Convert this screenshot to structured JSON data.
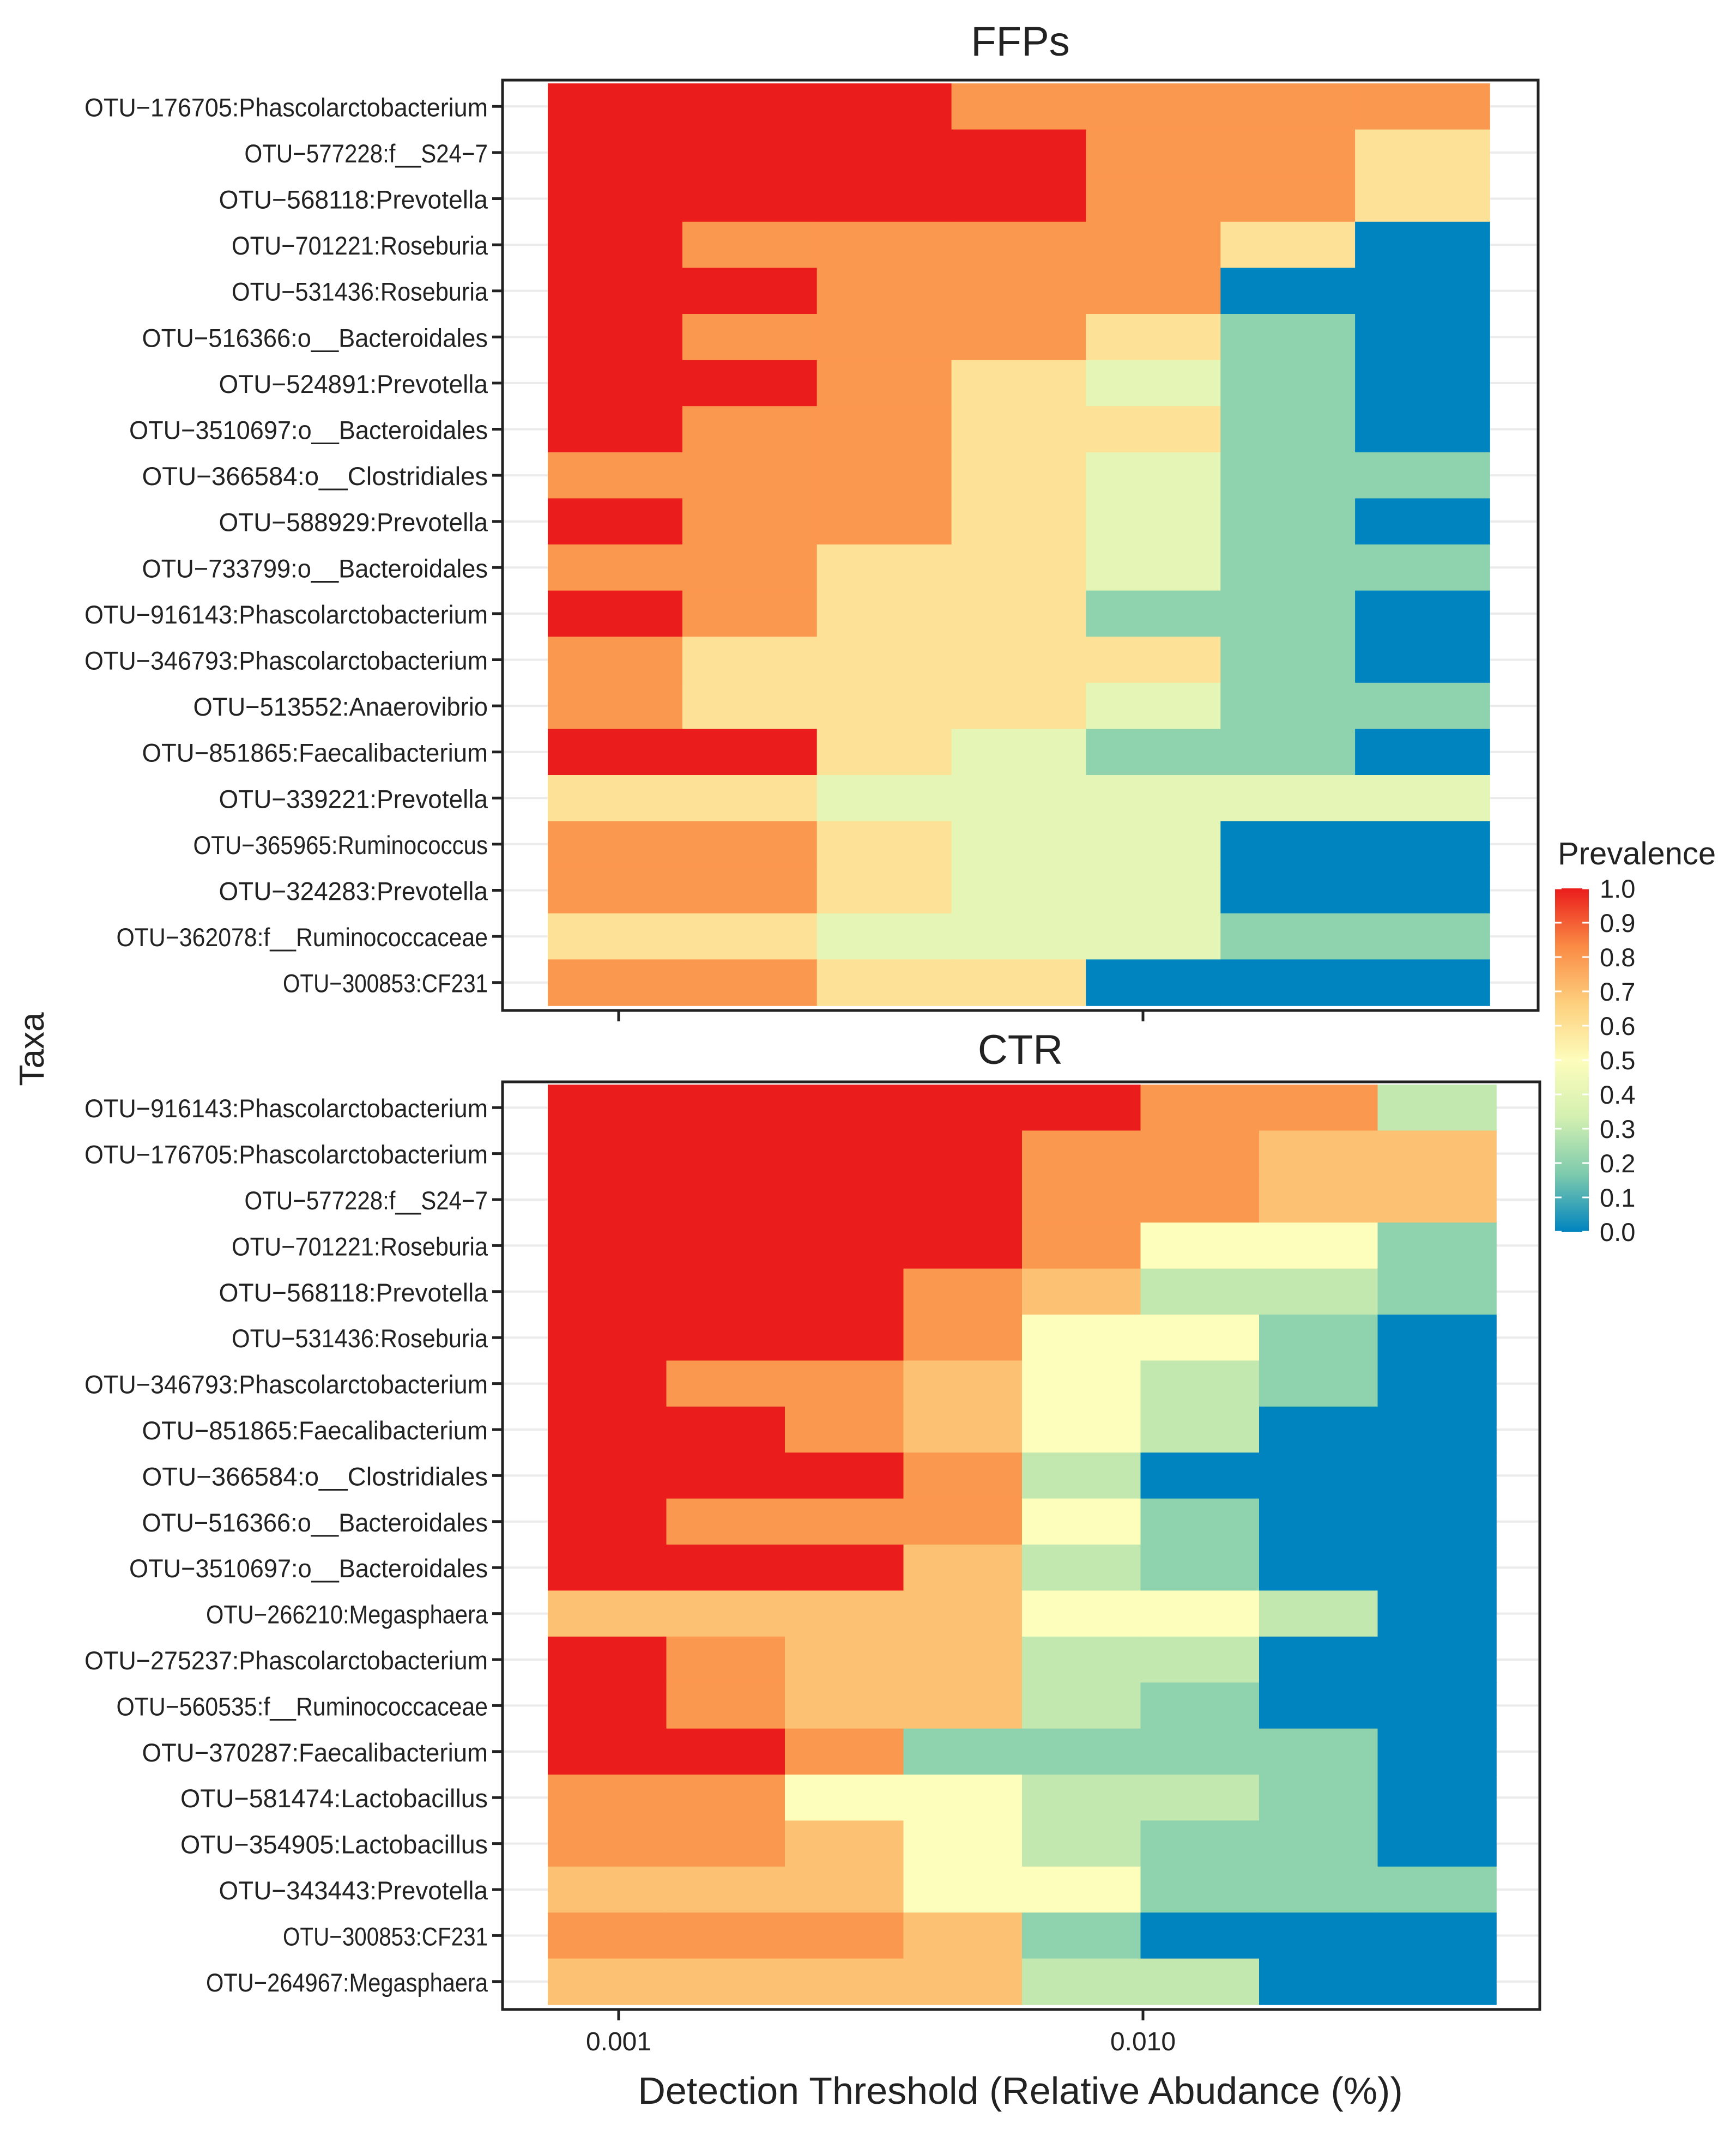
{
  "chart_data": [
    {
      "type": "heatmap",
      "title": "FFPs",
      "ylabel": "Taxa",
      "xlabel": "Detection Threshold (Relative Abudance (%))",
      "x_ticks": [
        "0.001",
        "0.010"
      ],
      "rows": [
        {
          "label": "OTU−176705:Phascolarctobacterium",
          "values": [
            1.0,
            1.0,
            1.0,
            0.8,
            0.8,
            0.8,
            0.8
          ]
        },
        {
          "label": "OTU−577228:f__S24−7",
          "values": [
            1.0,
            1.0,
            1.0,
            1.0,
            0.8,
            0.8,
            0.6
          ]
        },
        {
          "label": "OTU−568118:Prevotella",
          "values": [
            1.0,
            1.0,
            1.0,
            1.0,
            0.8,
            0.8,
            0.6
          ]
        },
        {
          "label": "OTU−701221:Roseburia",
          "values": [
            1.0,
            0.8,
            0.8,
            0.8,
            0.8,
            0.6,
            0.0
          ]
        },
        {
          "label": "OTU−531436:Roseburia",
          "values": [
            1.0,
            1.0,
            0.8,
            0.8,
            0.8,
            0.0,
            0.0
          ]
        },
        {
          "label": "OTU−516366:o__Bacteroidales",
          "values": [
            1.0,
            0.8,
            0.8,
            0.8,
            0.6,
            0.2,
            0.0
          ]
        },
        {
          "label": "OTU−524891:Prevotella",
          "values": [
            1.0,
            1.0,
            0.8,
            0.6,
            0.4,
            0.2,
            0.0
          ]
        },
        {
          "label": "OTU−3510697:o__Bacteroidales",
          "values": [
            1.0,
            0.8,
            0.8,
            0.6,
            0.6,
            0.2,
            0.0
          ]
        },
        {
          "label": "OTU−366584:o__Clostridiales",
          "values": [
            0.8,
            0.8,
            0.8,
            0.6,
            0.4,
            0.2,
            0.2
          ]
        },
        {
          "label": "OTU−588929:Prevotella",
          "values": [
            1.0,
            0.8,
            0.8,
            0.6,
            0.4,
            0.2,
            0.0
          ]
        },
        {
          "label": "OTU−733799:o__Bacteroidales",
          "values": [
            0.8,
            0.8,
            0.6,
            0.6,
            0.4,
            0.2,
            0.2
          ]
        },
        {
          "label": "OTU−916143:Phascolarctobacterium",
          "values": [
            1.0,
            0.8,
            0.6,
            0.6,
            0.2,
            0.2,
            0.0
          ]
        },
        {
          "label": "OTU−346793:Phascolarctobacterium",
          "values": [
            0.8,
            0.6,
            0.6,
            0.6,
            0.6,
            0.2,
            0.0
          ]
        },
        {
          "label": "OTU−513552:Anaerovibrio",
          "values": [
            0.8,
            0.6,
            0.6,
            0.6,
            0.4,
            0.2,
            0.2
          ]
        },
        {
          "label": "OTU−851865:Faecalibacterium",
          "values": [
            1.0,
            1.0,
            0.6,
            0.4,
            0.2,
            0.2,
            0.0
          ]
        },
        {
          "label": "OTU−339221:Prevotella",
          "values": [
            0.6,
            0.6,
            0.4,
            0.4,
            0.4,
            0.4,
            0.4
          ]
        },
        {
          "label": "OTU−365965:Ruminococcus",
          "values": [
            0.8,
            0.8,
            0.6,
            0.4,
            0.4,
            0.0,
            0.0
          ]
        },
        {
          "label": "OTU−324283:Prevotella",
          "values": [
            0.8,
            0.8,
            0.6,
            0.4,
            0.4,
            0.0,
            0.0
          ]
        },
        {
          "label": "OTU−362078:f__Ruminococcaceae",
          "values": [
            0.6,
            0.6,
            0.4,
            0.4,
            0.4,
            0.2,
            0.2
          ]
        },
        {
          "label": "OTU−300853:CF231",
          "values": [
            0.8,
            0.8,
            0.6,
            0.6,
            0.0,
            0.0,
            0.0
          ]
        }
      ]
    },
    {
      "type": "heatmap",
      "title": "CTR",
      "ylabel": "Taxa",
      "xlabel": "Detection Threshold (Relative Abudance (%))",
      "x_ticks": [
        "0.001",
        "0.010"
      ],
      "rows": [
        {
          "label": "OTU−916143:Phascolarctobacterium",
          "values": [
            1.0,
            1.0,
            1.0,
            1.0,
            1.0,
            0.8,
            0.8,
            0.3
          ]
        },
        {
          "label": "OTU−176705:Phascolarctobacterium",
          "values": [
            1.0,
            1.0,
            1.0,
            1.0,
            0.8,
            0.8,
            0.7,
            0.7
          ]
        },
        {
          "label": "OTU−577228:f__S24−7",
          "values": [
            1.0,
            1.0,
            1.0,
            1.0,
            0.8,
            0.8,
            0.7,
            0.7
          ]
        },
        {
          "label": "OTU−701221:Roseburia",
          "values": [
            1.0,
            1.0,
            1.0,
            1.0,
            0.8,
            0.5,
            0.5,
            0.2
          ]
        },
        {
          "label": "OTU−568118:Prevotella",
          "values": [
            1.0,
            1.0,
            1.0,
            0.8,
            0.7,
            0.3,
            0.3,
            0.2
          ]
        },
        {
          "label": "OTU−531436:Roseburia",
          "values": [
            1.0,
            1.0,
            1.0,
            0.8,
            0.5,
            0.5,
            0.2,
            0.0
          ]
        },
        {
          "label": "OTU−346793:Phascolarctobacterium",
          "values": [
            1.0,
            0.8,
            0.8,
            0.7,
            0.5,
            0.3,
            0.2,
            0.0
          ]
        },
        {
          "label": "OTU−851865:Faecalibacterium",
          "values": [
            1.0,
            1.0,
            0.8,
            0.7,
            0.5,
            0.3,
            0.0,
            0.0
          ]
        },
        {
          "label": "OTU−366584:o__Clostridiales",
          "values": [
            1.0,
            1.0,
            1.0,
            0.8,
            0.3,
            0.0,
            0.0,
            0.0
          ]
        },
        {
          "label": "OTU−516366:o__Bacteroidales",
          "values": [
            1.0,
            0.8,
            0.8,
            0.8,
            0.5,
            0.2,
            0.0,
            0.0
          ]
        },
        {
          "label": "OTU−3510697:o__Bacteroidales",
          "values": [
            1.0,
            1.0,
            1.0,
            0.7,
            0.3,
            0.2,
            0.0,
            0.0
          ]
        },
        {
          "label": "OTU−266210:Megasphaera",
          "values": [
            0.7,
            0.7,
            0.7,
            0.7,
            0.5,
            0.5,
            0.3,
            0.0
          ]
        },
        {
          "label": "OTU−275237:Phascolarctobacterium",
          "values": [
            1.0,
            0.8,
            0.7,
            0.7,
            0.3,
            0.3,
            0.0,
            0.0
          ]
        },
        {
          "label": "OTU−560535:f__Ruminococcaceae",
          "values": [
            1.0,
            0.8,
            0.7,
            0.7,
            0.3,
            0.2,
            0.0,
            0.0
          ]
        },
        {
          "label": "OTU−370287:Faecalibacterium",
          "values": [
            1.0,
            1.0,
            0.8,
            0.2,
            0.2,
            0.2,
            0.2,
            0.0
          ]
        },
        {
          "label": "OTU−581474:Lactobacillus",
          "values": [
            0.8,
            0.8,
            0.5,
            0.5,
            0.3,
            0.3,
            0.2,
            0.0
          ]
        },
        {
          "label": "OTU−354905:Lactobacillus",
          "values": [
            0.8,
            0.8,
            0.7,
            0.5,
            0.3,
            0.2,
            0.2,
            0.0
          ]
        },
        {
          "label": "OTU−343443:Prevotella",
          "values": [
            0.7,
            0.7,
            0.7,
            0.5,
            0.5,
            0.2,
            0.2,
            0.2
          ]
        },
        {
          "label": "OTU−300853:CF231",
          "values": [
            0.8,
            0.8,
            0.8,
            0.7,
            0.2,
            0.0,
            0.0,
            0.0
          ]
        },
        {
          "label": "OTU−264967:Megasphaera",
          "values": [
            0.7,
            0.7,
            0.7,
            0.7,
            0.3,
            0.3,
            0.0,
            0.0
          ]
        }
      ]
    }
  ],
  "legend": {
    "title": "Prevalence",
    "ticks": [
      "1.0",
      "0.9",
      "0.8",
      "0.7",
      "0.6",
      "0.5",
      "0.4",
      "0.3",
      "0.2",
      "0.1",
      "0.0"
    ],
    "tick_values": [
      1.0,
      0.9,
      0.8,
      0.7,
      0.6,
      0.5,
      0.4,
      0.3,
      0.2,
      0.1,
      0.0
    ],
    "colormap": [
      "#0084bf",
      "#7dcaad",
      "#d3f0b1",
      "#fdfdbc",
      "#fdcf7d",
      "#fa8a44",
      "#ea1c1c"
    ]
  }
}
